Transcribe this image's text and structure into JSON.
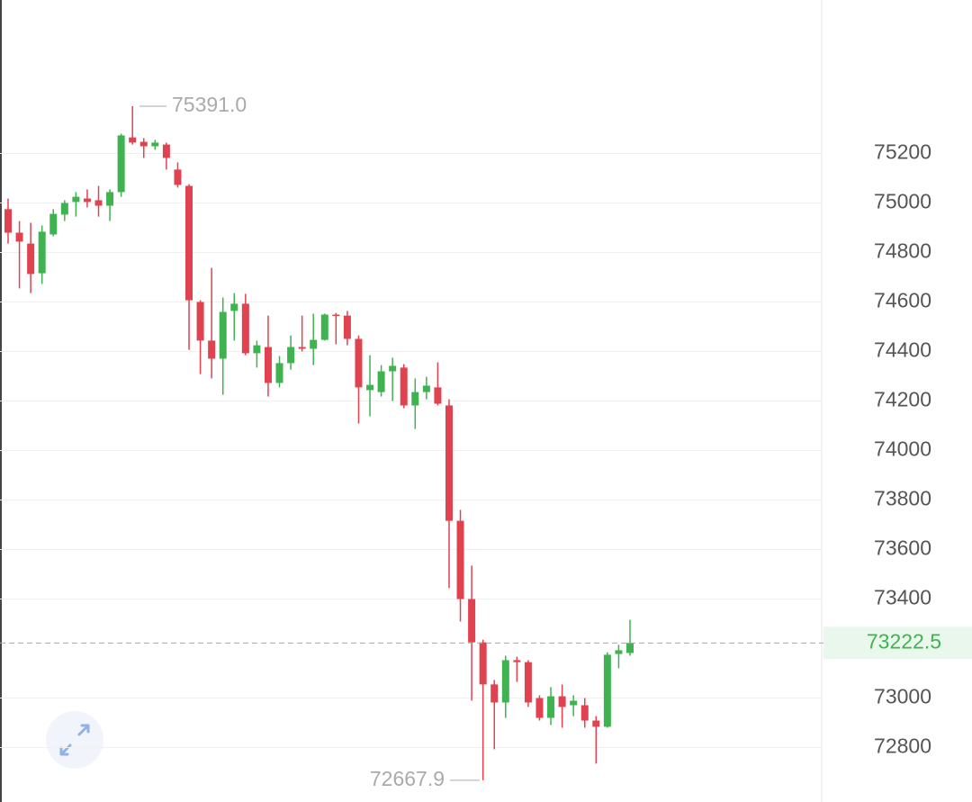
{
  "chart_data": {
    "type": "candlestick",
    "up_color": "#3fb34f",
    "down_color": "#e0424f",
    "open": [
      74975,
      74880,
      74836,
      74716,
      74873,
      74953,
      75004,
      75018,
      75011,
      74989,
      75044,
      75265,
      75247,
      75229,
      75236,
      75135,
      75069,
      74600,
      74444,
      74371,
      74564,
      74593,
      74393,
      74418,
      74273,
      74353,
      74418,
      74411,
      74447,
      74549,
      74545,
      74451,
      74244,
      74236,
      74320,
      74335,
      74182,
      74236,
      74255,
      74182,
      73716,
      73400,
      73225,
      73055,
      72982,
      73153,
      73145,
      73000,
      72920,
      73007,
      72971,
      72971,
      72909,
      72884,
      73178,
      73182
    ],
    "high": [
      75018,
      74927,
      74920,
      74909,
      74975,
      75011,
      75044,
      75055,
      75069,
      75055,
      75280,
      75391,
      75262,
      75255,
      75244,
      75164,
      75076,
      74607,
      74738,
      74618,
      74636,
      74633,
      74444,
      74545,
      74382,
      74465,
      74545,
      74553,
      74553,
      74556,
      74564,
      74465,
      74385,
      74345,
      74375,
      74349,
      74291,
      74298,
      74356,
      74207,
      73760,
      73535,
      73236,
      73073,
      73171,
      73167,
      73153,
      73011,
      73044,
      73055,
      73011,
      73000,
      72927,
      73185,
      73215,
      73316
    ],
    "low": [
      74836,
      74655,
      74636,
      74673,
      74866,
      74927,
      74945,
      74982,
      74945,
      74927,
      75025,
      75236,
      75182,
      75215,
      75135,
      75062,
      74407,
      74309,
      74291,
      74225,
      74444,
      74385,
      74335,
      74218,
      74255,
      74327,
      74400,
      74345,
      74444,
      74429,
      74425,
      74109,
      74138,
      74218,
      74200,
      74171,
      74087,
      74207,
      74182,
      73444,
      73309,
      72989,
      72667.9,
      72793,
      72920,
      73065,
      72964,
      72909,
      72891,
      72880,
      72927,
      72880,
      72735,
      72880,
      73120,
      73171
    ],
    "close": [
      74880,
      74844,
      74713,
      74884,
      74956,
      75000,
      75025,
      75004,
      74989,
      75044,
      75273,
      75244,
      75229,
      75244,
      75182,
      75073,
      74607,
      74444,
      74371,
      74560,
      74593,
      74393,
      74425,
      74273,
      74353,
      74418,
      74411,
      74447,
      74549,
      74545,
      74451,
      74255,
      74265,
      74320,
      74342,
      74182,
      74236,
      74262,
      74189,
      73716,
      73400,
      73225,
      73055,
      72982,
      73153,
      73145,
      72982,
      72920,
      73007,
      72964,
      72989,
      72909,
      72884,
      73175,
      73193,
      73222.5
    ],
    "ylim": [
      72580,
      75820
    ],
    "yticks": [
      72800,
      73000,
      73400,
      73600,
      73800,
      74000,
      74200,
      74400,
      74600,
      74800,
      75000,
      75200
    ],
    "grid": true,
    "annotations": [
      {
        "value": 75391,
        "label": "75391.0"
      },
      {
        "value": 72667.9,
        "label": "72667.9"
      }
    ],
    "last_price": {
      "value": 73222.5,
      "label": "73222.5"
    }
  }
}
